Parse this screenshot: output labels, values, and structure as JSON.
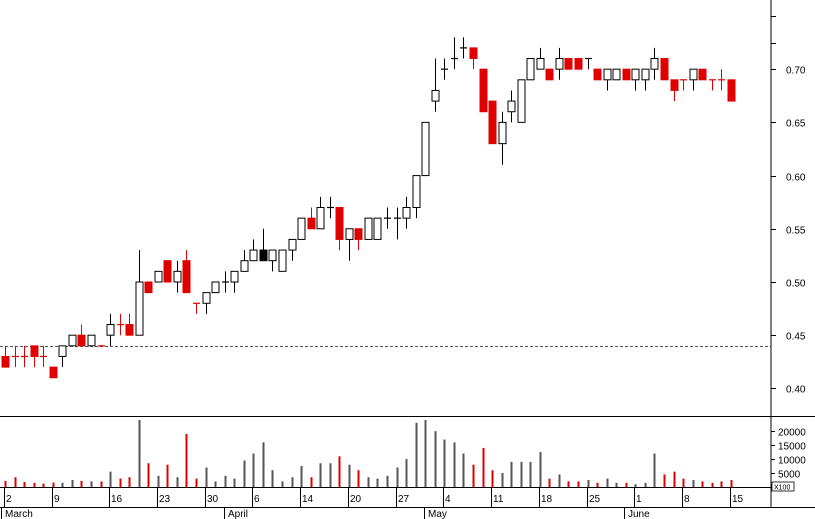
{
  "chart_data": {
    "type": "candlestick",
    "price_ylim": [
      0.375,
      0.765
    ],
    "price_ticks": [
      "0.40",
      "0.45",
      "0.50",
      "0.55",
      "0.60",
      "0.65",
      "0.70"
    ],
    "reference_line": 0.44,
    "volume_ylim": [
      0,
      24000
    ],
    "volume_ticks": [
      "0",
      "5000",
      "10000",
      "15000",
      "20000"
    ],
    "volume_unit_label": "X100",
    "day_labels": [
      "2",
      "9",
      "16",
      "23",
      "30",
      "6",
      "14",
      "20",
      "27",
      "4",
      "11",
      "18",
      "25",
      "1",
      "8",
      "15"
    ],
    "month_labels": [
      "March",
      "April",
      "May",
      "June"
    ],
    "colors": {
      "up": "#ffffff",
      "up_outline": "#000000",
      "down": "#e00000",
      "volume_up": "#555555",
      "volume_down": "#e00000",
      "reference": "#555555"
    },
    "candles": [
      {
        "o": 0.43,
        "h": 0.44,
        "l": 0.42,
        "c": 0.42,
        "v": 2200,
        "d": "down"
      },
      {
        "o": 0.43,
        "h": 0.44,
        "l": 0.42,
        "c": 0.43,
        "v": 3500,
        "d": "down"
      },
      {
        "o": 0.43,
        "h": 0.44,
        "l": 0.42,
        "c": 0.43,
        "v": 1800,
        "d": "down"
      },
      {
        "o": 0.44,
        "h": 0.44,
        "l": 0.42,
        "c": 0.43,
        "v": 1500,
        "d": "down"
      },
      {
        "o": 0.43,
        "h": 0.44,
        "l": 0.42,
        "c": 0.43,
        "v": 1200,
        "d": "down"
      },
      {
        "o": 0.42,
        "h": 0.42,
        "l": 0.41,
        "c": 0.41,
        "v": 1600,
        "d": "down"
      },
      {
        "o": 0.43,
        "h": 0.44,
        "l": 0.42,
        "c": 0.44,
        "v": 1500,
        "d": "up"
      },
      {
        "o": 0.44,
        "h": 0.45,
        "l": 0.44,
        "c": 0.45,
        "v": 2500,
        "d": "up"
      },
      {
        "o": 0.45,
        "h": 0.46,
        "l": 0.44,
        "c": 0.44,
        "v": 2200,
        "d": "down"
      },
      {
        "o": 0.44,
        "h": 0.45,
        "l": 0.44,
        "c": 0.45,
        "v": 2000,
        "d": "up"
      },
      {
        "o": 0.44,
        "h": 0.44,
        "l": 0.44,
        "c": 0.44,
        "v": 2000,
        "d": "down"
      },
      {
        "o": 0.45,
        "h": 0.47,
        "l": 0.44,
        "c": 0.46,
        "v": 5500,
        "d": "up"
      },
      {
        "o": 0.46,
        "h": 0.47,
        "l": 0.45,
        "c": 0.46,
        "v": 3000,
        "d": "down"
      },
      {
        "o": 0.46,
        "h": 0.47,
        "l": 0.45,
        "c": 0.45,
        "v": 3500,
        "d": "down"
      },
      {
        "o": 0.45,
        "h": 0.53,
        "l": 0.45,
        "c": 0.5,
        "v": 24000,
        "d": "up"
      },
      {
        "o": 0.5,
        "h": 0.5,
        "l": 0.49,
        "c": 0.49,
        "v": 8500,
        "d": "down"
      },
      {
        "o": 0.5,
        "h": 0.51,
        "l": 0.5,
        "c": 0.51,
        "v": 4000,
        "d": "up"
      },
      {
        "o": 0.52,
        "h": 0.52,
        "l": 0.5,
        "c": 0.5,
        "v": 8000,
        "d": "down"
      },
      {
        "o": 0.51,
        "h": 0.52,
        "l": 0.49,
        "c": 0.5,
        "v": 3500,
        "d": "up"
      },
      {
        "o": 0.52,
        "h": 0.53,
        "l": 0.49,
        "c": 0.49,
        "v": 19000,
        "d": "down"
      },
      {
        "o": 0.48,
        "h": 0.48,
        "l": 0.47,
        "c": 0.48,
        "v": 3000,
        "d": "down"
      },
      {
        "o": 0.48,
        "h": 0.49,
        "l": 0.47,
        "c": 0.49,
        "v": 7000,
        "d": "up"
      },
      {
        "o": 0.49,
        "h": 0.5,
        "l": 0.49,
        "c": 0.5,
        "v": 2000,
        "d": "up"
      },
      {
        "o": 0.5,
        "h": 0.51,
        "l": 0.49,
        "c": 0.5,
        "v": 4000,
        "d": "up"
      },
      {
        "o": 0.5,
        "h": 0.51,
        "l": 0.49,
        "c": 0.51,
        "v": 3000,
        "d": "up"
      },
      {
        "o": 0.51,
        "h": 0.53,
        "l": 0.51,
        "c": 0.52,
        "v": 9500,
        "d": "up"
      },
      {
        "o": 0.52,
        "h": 0.54,
        "l": 0.52,
        "c": 0.53,
        "v": 12000,
        "d": "up"
      },
      {
        "o": 0.53,
        "h": 0.55,
        "l": 0.52,
        "c": 0.52,
        "v": 16000,
        "d": "dark"
      },
      {
        "o": 0.52,
        "h": 0.53,
        "l": 0.51,
        "c": 0.53,
        "v": 6000,
        "d": "up"
      },
      {
        "o": 0.51,
        "h": 0.53,
        "l": 0.51,
        "c": 0.53,
        "v": 2000,
        "d": "up"
      },
      {
        "o": 0.53,
        "h": 0.54,
        "l": 0.52,
        "c": 0.54,
        "v": 3500,
        "d": "up"
      },
      {
        "o": 0.54,
        "h": 0.56,
        "l": 0.54,
        "c": 0.56,
        "v": 7500,
        "d": "up"
      },
      {
        "o": 0.56,
        "h": 0.57,
        "l": 0.55,
        "c": 0.55,
        "v": 3500,
        "d": "down"
      },
      {
        "o": 0.55,
        "h": 0.58,
        "l": 0.55,
        "c": 0.57,
        "v": 8500,
        "d": "up"
      },
      {
        "o": 0.57,
        "h": 0.58,
        "l": 0.56,
        "c": 0.57,
        "v": 8500,
        "d": "up"
      },
      {
        "o": 0.57,
        "h": 0.57,
        "l": 0.53,
        "c": 0.54,
        "v": 11000,
        "d": "down"
      },
      {
        "o": 0.54,
        "h": 0.55,
        "l": 0.52,
        "c": 0.55,
        "v": 8000,
        "d": "up"
      },
      {
        "o": 0.55,
        "h": 0.55,
        "l": 0.53,
        "c": 0.54,
        "v": 6000,
        "d": "down"
      },
      {
        "o": 0.54,
        "h": 0.56,
        "l": 0.54,
        "c": 0.56,
        "v": 3500,
        "d": "up"
      },
      {
        "o": 0.54,
        "h": 0.56,
        "l": 0.54,
        "c": 0.56,
        "v": 3000,
        "d": "up"
      },
      {
        "o": 0.56,
        "h": 0.57,
        "l": 0.55,
        "c": 0.56,
        "v": 4000,
        "d": "up"
      },
      {
        "o": 0.56,
        "h": 0.57,
        "l": 0.54,
        "c": 0.56,
        "v": 7000,
        "d": "up"
      },
      {
        "o": 0.56,
        "h": 0.58,
        "l": 0.55,
        "c": 0.57,
        "v": 10000,
        "d": "up"
      },
      {
        "o": 0.57,
        "h": 0.6,
        "l": 0.56,
        "c": 0.6,
        "v": 23000,
        "d": "up"
      },
      {
        "o": 0.6,
        "h": 0.65,
        "l": 0.6,
        "c": 0.65,
        "v": 24000,
        "d": "up"
      },
      {
        "o": 0.67,
        "h": 0.71,
        "l": 0.66,
        "c": 0.68,
        "v": 20000,
        "d": "up"
      },
      {
        "o": 0.7,
        "h": 0.71,
        "l": 0.69,
        "c": 0.7,
        "v": 17000,
        "d": "up"
      },
      {
        "o": 0.71,
        "h": 0.73,
        "l": 0.7,
        "c": 0.71,
        "v": 16000,
        "d": "up"
      },
      {
        "o": 0.72,
        "h": 0.73,
        "l": 0.71,
        "c": 0.72,
        "v": 12000,
        "d": "up"
      },
      {
        "o": 0.72,
        "h": 0.72,
        "l": 0.7,
        "c": 0.71,
        "v": 8000,
        "d": "down"
      },
      {
        "o": 0.7,
        "h": 0.7,
        "l": 0.66,
        "c": 0.66,
        "v": 14000,
        "d": "down"
      },
      {
        "o": 0.67,
        "h": 0.67,
        "l": 0.63,
        "c": 0.63,
        "v": 6000,
        "d": "down"
      },
      {
        "o": 0.63,
        "h": 0.66,
        "l": 0.61,
        "c": 0.65,
        "v": 5000,
        "d": "up"
      },
      {
        "o": 0.66,
        "h": 0.68,
        "l": 0.65,
        "c": 0.67,
        "v": 9000,
        "d": "up"
      },
      {
        "o": 0.65,
        "h": 0.69,
        "l": 0.65,
        "c": 0.69,
        "v": 9000,
        "d": "up"
      },
      {
        "o": 0.69,
        "h": 0.71,
        "l": 0.69,
        "c": 0.71,
        "v": 9000,
        "d": "up"
      },
      {
        "o": 0.7,
        "h": 0.72,
        "l": 0.7,
        "c": 0.71,
        "v": 12500,
        "d": "up"
      },
      {
        "o": 0.7,
        "h": 0.7,
        "l": 0.69,
        "c": 0.69,
        "v": 3000,
        "d": "down"
      },
      {
        "o": 0.7,
        "h": 0.72,
        "l": 0.69,
        "c": 0.71,
        "v": 4500,
        "d": "up"
      },
      {
        "o": 0.71,
        "h": 0.71,
        "l": 0.7,
        "c": 0.7,
        "v": 2000,
        "d": "down"
      },
      {
        "o": 0.71,
        "h": 0.71,
        "l": 0.7,
        "c": 0.7,
        "v": 2000,
        "d": "down"
      },
      {
        "o": 0.71,
        "h": 0.71,
        "l": 0.7,
        "c": 0.71,
        "v": 2500,
        "d": "up"
      },
      {
        "o": 0.7,
        "h": 0.7,
        "l": 0.69,
        "c": 0.69,
        "v": 1500,
        "d": "down"
      },
      {
        "o": 0.69,
        "h": 0.7,
        "l": 0.68,
        "c": 0.7,
        "v": 3000,
        "d": "up"
      },
      {
        "o": 0.69,
        "h": 0.7,
        "l": 0.69,
        "c": 0.7,
        "v": 1500,
        "d": "up"
      },
      {
        "o": 0.7,
        "h": 0.7,
        "l": 0.69,
        "c": 0.69,
        "v": 1500,
        "d": "down"
      },
      {
        "o": 0.69,
        "h": 0.7,
        "l": 0.68,
        "c": 0.7,
        "v": 1000,
        "d": "up"
      },
      {
        "o": 0.69,
        "h": 0.7,
        "l": 0.68,
        "c": 0.7,
        "v": 1500,
        "d": "up"
      },
      {
        "o": 0.7,
        "h": 0.72,
        "l": 0.69,
        "c": 0.71,
        "v": 12000,
        "d": "up"
      },
      {
        "o": 0.71,
        "h": 0.71,
        "l": 0.69,
        "c": 0.69,
        "v": 4500,
        "d": "down"
      },
      {
        "o": 0.69,
        "h": 0.69,
        "l": 0.67,
        "c": 0.68,
        "v": 5500,
        "d": "down"
      },
      {
        "o": 0.69,
        "h": 0.69,
        "l": 0.68,
        "c": 0.69,
        "v": 3000,
        "d": "down"
      },
      {
        "o": 0.69,
        "h": 0.7,
        "l": 0.68,
        "c": 0.7,
        "v": 2500,
        "d": "up"
      },
      {
        "o": 0.7,
        "h": 0.7,
        "l": 0.69,
        "c": 0.69,
        "v": 2000,
        "d": "down"
      },
      {
        "o": 0.69,
        "h": 0.69,
        "l": 0.68,
        "c": 0.69,
        "v": 1500,
        "d": "down"
      },
      {
        "o": 0.69,
        "h": 0.7,
        "l": 0.68,
        "c": 0.69,
        "v": 2000,
        "d": "down"
      },
      {
        "o": 0.69,
        "h": 0.69,
        "l": 0.67,
        "c": 0.67,
        "v": 2500,
        "d": "down"
      }
    ]
  }
}
